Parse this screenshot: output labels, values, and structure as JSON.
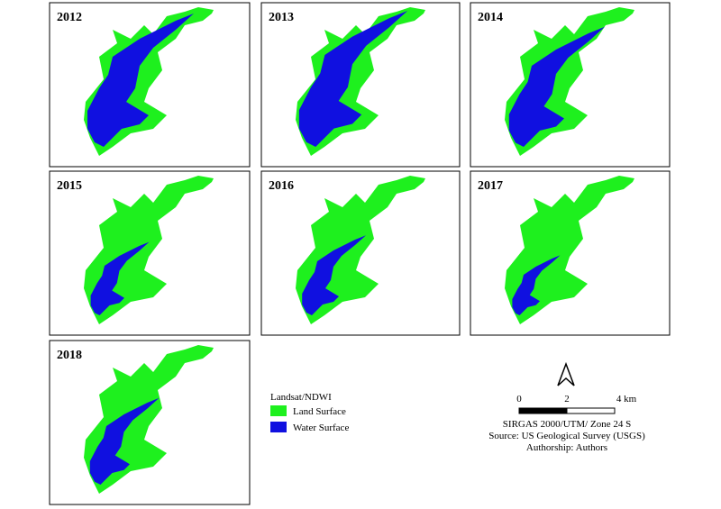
{
  "panels": [
    {
      "year": "2012"
    },
    {
      "year": "2013"
    },
    {
      "year": "2014"
    },
    {
      "year": "2015"
    },
    {
      "year": "2016"
    },
    {
      "year": "2017"
    },
    {
      "year": "2018"
    }
  ],
  "legend": {
    "title": "Landsat/NDWI",
    "items": [
      "Land Surface",
      "Water Surface"
    ]
  },
  "scale_bar": {
    "labels": [
      "0",
      "2",
      "4 km"
    ]
  },
  "credits": [
    "SIRGAS 2000/UTM/ Zone 24 S",
    "Source: US Geological Survey (USGS)",
    "Authorship: Authors"
  ]
}
